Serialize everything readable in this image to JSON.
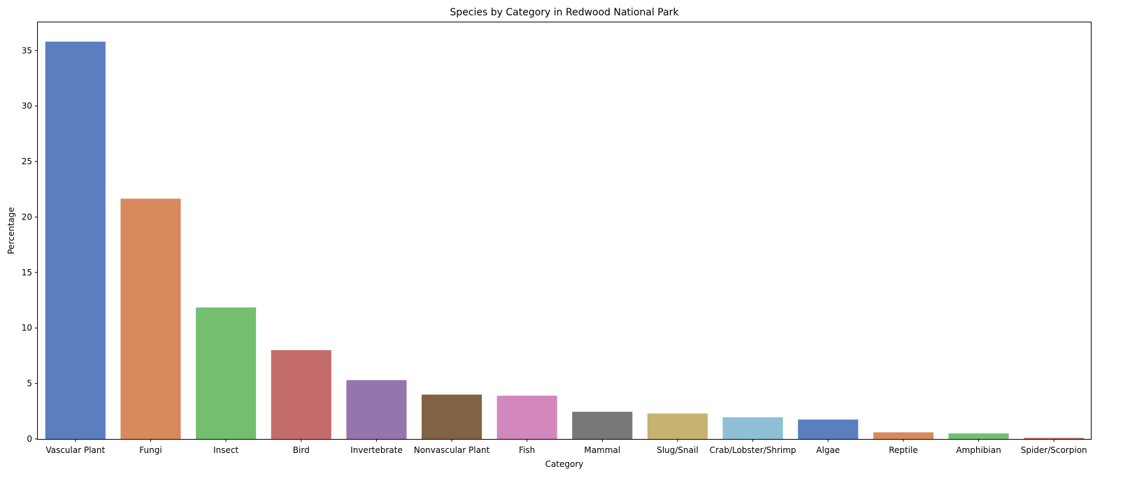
{
  "chart_data": {
    "type": "bar",
    "title": "Species by Category in Redwood National Park",
    "xlabel": "Category",
    "ylabel": "Percentage",
    "ylim": [
      0,
      37.6
    ],
    "yticks": [
      0,
      5,
      10,
      15,
      20,
      25,
      30,
      35
    ],
    "grid": false,
    "categories": [
      "Vascular Plant",
      "Fungi",
      "Insect",
      "Bird",
      "Invertebrate",
      "Nonvascular Plant",
      "Fish",
      "Mammal",
      "Slug/Snail",
      "Crab/Lobster/Shrimp",
      "Algae",
      "Reptile",
      "Amphibian",
      "Spider/Scorpion"
    ],
    "values": [
      35.8,
      21.65,
      11.85,
      8.0,
      5.3,
      4.0,
      3.9,
      2.45,
      2.3,
      1.95,
      1.75,
      0.6,
      0.5,
      0.1
    ],
    "colors": [
      "#5a7ec0",
      "#d8895d",
      "#74be6f",
      "#c46c6b",
      "#9575ac",
      "#826245",
      "#d287bd",
      "#787878",
      "#c6b272",
      "#8ebfd5",
      "#5a7ec0",
      "#d8895d",
      "#74be6f",
      "#c46c6b"
    ]
  }
}
